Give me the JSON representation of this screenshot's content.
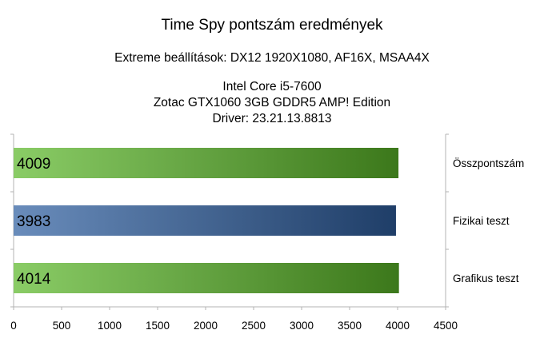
{
  "chart_data": {
    "type": "bar",
    "orientation": "horizontal",
    "title": "Time Spy pontszám eredmények",
    "subtitle": "Extreme beállítások: DX12 1920X1080, AF16X, MSAA4X",
    "caption": [
      "Intel Core i5-7600",
      "Zotac GTX1060 3GB GDDR5 AMP! Edition",
      "Driver: 23.21.13.8813"
    ],
    "categories": [
      "Összpontszám",
      "Fizikai teszt",
      "Grafikus teszt"
    ],
    "values": [
      4009,
      3983,
      4014
    ],
    "data_labels": [
      "4009",
      "3983",
      "4014"
    ],
    "bar_colors": [
      "#5cb82a",
      "#2f5fa0",
      "#5cb82a"
    ],
    "xlim": [
      0,
      4500
    ],
    "xticks": [
      0,
      500,
      1000,
      1500,
      2000,
      2500,
      3000,
      3500,
      4000,
      4500
    ],
    "category_axis_position": "right",
    "grid": false,
    "legend": "none"
  }
}
